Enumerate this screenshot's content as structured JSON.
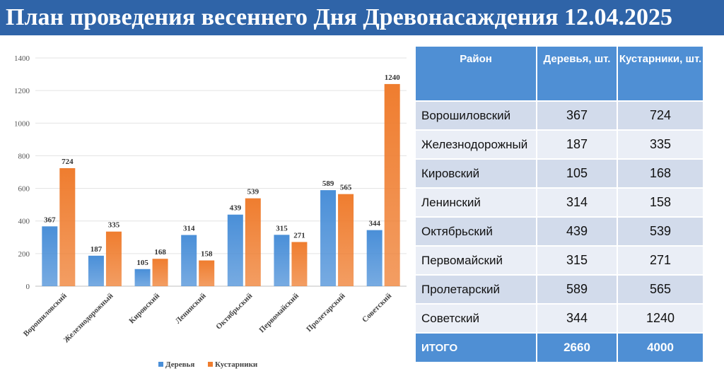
{
  "title": "План проведения весеннего Дня Древонасаждения 12.04.2025",
  "colors": {
    "trees": "#4a8fd8",
    "shrubs": "#ef7d2f",
    "header": "#2f64a8",
    "table_header": "#4f8fd4"
  },
  "chart_data": {
    "type": "bar",
    "title": "",
    "xlabel": "",
    "ylabel": "",
    "ylim": [
      0,
      1400
    ],
    "yticks": [
      0,
      200,
      400,
      600,
      800,
      1000,
      1200,
      1400
    ],
    "grid": true,
    "legend_position": "bottom",
    "categories": [
      "Ворошиловский",
      "Железнодорожный",
      "Кировский",
      "Ленинский",
      "Октябрьский",
      "Первомайский",
      "Пролетарский",
      "Советский"
    ],
    "series": [
      {
        "name": "Деревья",
        "color": "#4a8fd8",
        "values": [
          367,
          187,
          105,
          314,
          439,
          315,
          589,
          344
        ]
      },
      {
        "name": "Кустарники",
        "color": "#ef7d2f",
        "values": [
          724,
          335,
          168,
          158,
          539,
          271,
          565,
          1240
        ]
      }
    ]
  },
  "table": {
    "headers": [
      "Район",
      "Деревья, шт.",
      "Кустарники, шт."
    ],
    "rows": [
      {
        "district": "Ворошиловский",
        "trees": "367",
        "shrubs": "724"
      },
      {
        "district": "Железнодорожный",
        "trees": "187",
        "shrubs": "335"
      },
      {
        "district": "Кировский",
        "trees": "105",
        "shrubs": "168"
      },
      {
        "district": "Ленинский",
        "trees": "314",
        "shrubs": "158"
      },
      {
        "district": "Октябрьский",
        "trees": "439",
        "shrubs": "539"
      },
      {
        "district": "Первомайский",
        "trees": "315",
        "shrubs": "271"
      },
      {
        "district": "Пролетарский",
        "trees": "589",
        "shrubs": "565"
      },
      {
        "district": "Советский",
        "trees": "344",
        "shrubs": "1240"
      }
    ],
    "total": {
      "label": "ИТОГО",
      "trees": "2660",
      "shrubs": "4000"
    }
  }
}
